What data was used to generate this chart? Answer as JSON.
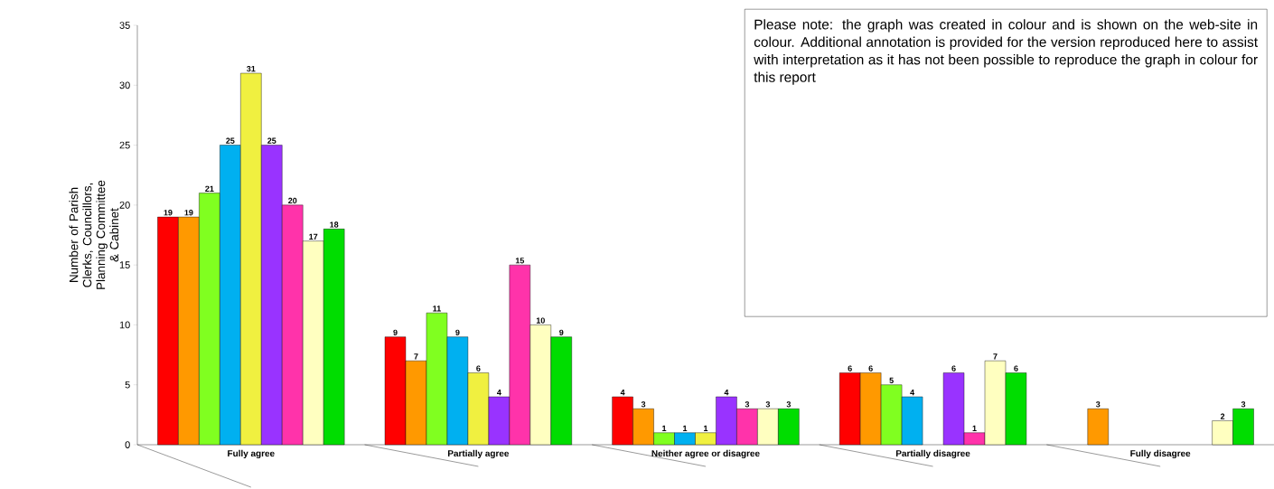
{
  "chart_data": {
    "type": "bar",
    "ylabel": "Number of Parish Clerks, Councillors, Planning Committee & Cabinet",
    "categories": [
      "Fully agree",
      "Partially agree",
      "Neither agree or disagree",
      "Partially disagree",
      "Fully disagree"
    ],
    "series": [
      {
        "color": "#ff0000",
        "values": [
          19,
          9,
          4,
          6,
          null
        ]
      },
      {
        "color": "#ff9900",
        "values": [
          19,
          7,
          3,
          6,
          3
        ]
      },
      {
        "color": "#80ff20",
        "values": [
          21,
          11,
          1,
          5,
          null
        ]
      },
      {
        "color": "#00b0f0",
        "values": [
          25,
          9,
          1,
          4,
          null
        ]
      },
      {
        "color": "#f0f040",
        "values": [
          31,
          6,
          1,
          null,
          null
        ]
      },
      {
        "color": "#9933ff",
        "values": [
          25,
          4,
          4,
          6,
          null
        ]
      },
      {
        "color": "#ff33aa",
        "values": [
          20,
          15,
          3,
          1,
          null
        ]
      },
      {
        "color": "#ffffc0",
        "values": [
          17,
          10,
          3,
          7,
          2
        ]
      },
      {
        "color": "#00dd00",
        "values": [
          18,
          9,
          3,
          6,
          3
        ]
      }
    ],
    "ylim": [
      0,
      35
    ],
    "yticks": [
      0,
      5,
      10,
      15,
      20,
      25,
      30,
      35
    ],
    "data_labels": true,
    "annotations": [
      "Please note: the graph was created in colour and is shown on the web-site in colour. Additional annotation is provided for the version reproduced here to assist with interpretation as it has not been possible to reproduce the graph in colour for this report"
    ]
  }
}
